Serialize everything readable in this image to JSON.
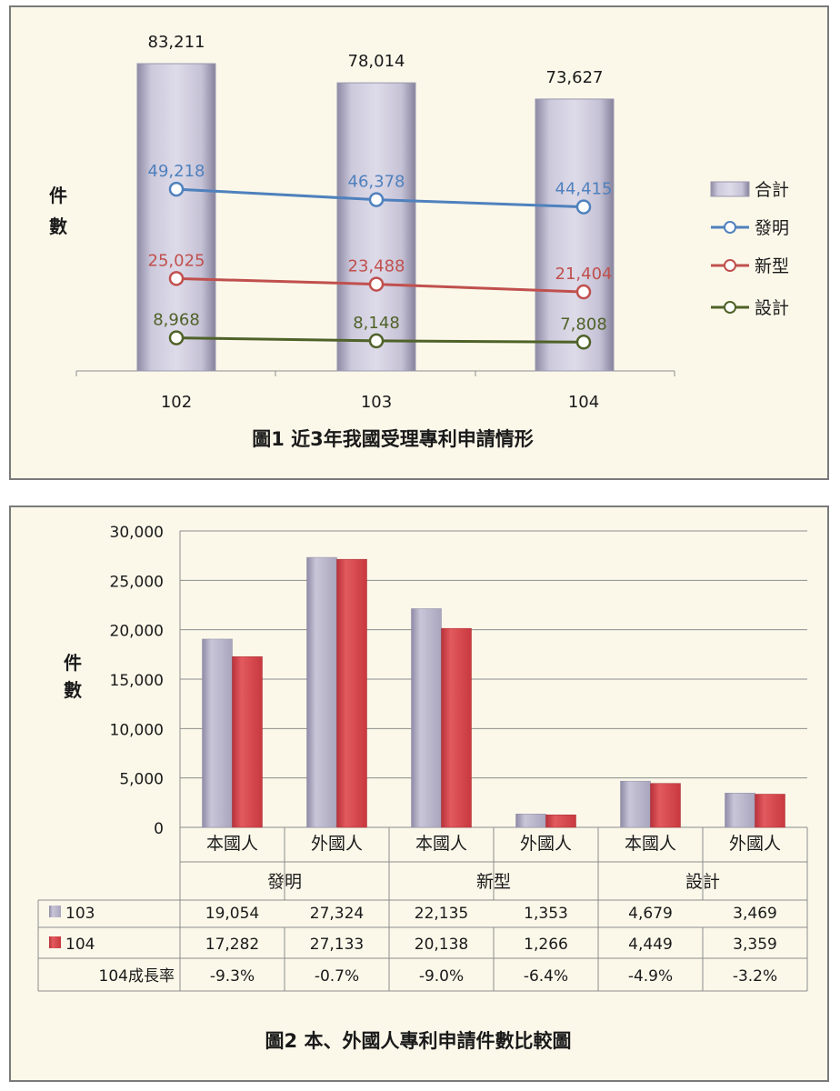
{
  "colors": {
    "total_bar": "#c9c6d6",
    "invention": "#4f81bd",
    "utility": "#c0504d",
    "design": "#4f6228",
    "bar_103": "#b6b2c8",
    "bar_104": "#d8454a",
    "panel_bg": "#fbf8ea"
  },
  "chart_data": [
    {
      "type": "bar",
      "title": "圖1 近3年我國受理專利申請情形",
      "ylabel": "件數",
      "categories": [
        "102",
        "103",
        "104"
      ],
      "legend_position": "right",
      "series": [
        {
          "name": "合計",
          "type": "bar",
          "values": [
            83211,
            78014,
            73627
          ],
          "labels": [
            "83,211",
            "78,014",
            "73,627"
          ]
        },
        {
          "name": "發明",
          "type": "line",
          "values": [
            49218,
            46378,
            44415
          ],
          "labels": [
            "49,218",
            "46,378",
            "44,415"
          ]
        },
        {
          "name": "新型",
          "type": "line",
          "values": [
            25025,
            23488,
            21404
          ],
          "labels": [
            "25,025",
            "23,488",
            "21,404"
          ]
        },
        {
          "name": "設計",
          "type": "line",
          "values": [
            8968,
            8148,
            7808
          ],
          "labels": [
            "8,968",
            "8,148",
            "7,808"
          ]
        }
      ]
    },
    {
      "type": "bar",
      "title": "圖2 本、外國人專利申請件數比較圖",
      "ylabel": "件數",
      "ylim": [
        0,
        30000
      ],
      "yticks": [
        "0",
        "5,000",
        "10,000",
        "15,000",
        "20,000",
        "25,000",
        "30,000"
      ],
      "groups": [
        "發明",
        "新型",
        "設計"
      ],
      "categories": [
        "本國人",
        "外國人",
        "本國人",
        "外國人",
        "本國人",
        "外國人"
      ],
      "series": [
        {
          "name": "103",
          "values": [
            19054,
            27324,
            22135,
            1353,
            4679,
            3469
          ],
          "labels": [
            "19,054",
            "27,324",
            "22,135",
            "1,353",
            "4,679",
            "3,469"
          ]
        },
        {
          "name": "104",
          "values": [
            17282,
            27133,
            20138,
            1266,
            4449,
            3359
          ],
          "labels": [
            "17,282",
            "27,133",
            "20,138",
            "1,266",
            "4,449",
            "3,359"
          ]
        }
      ],
      "table_extra_row": {
        "name": "104成長率",
        "values": [
          "-9.3%",
          "-0.7%",
          "-9.0%",
          "-6.4%",
          "-4.9%",
          "-3.2%"
        ]
      }
    }
  ]
}
